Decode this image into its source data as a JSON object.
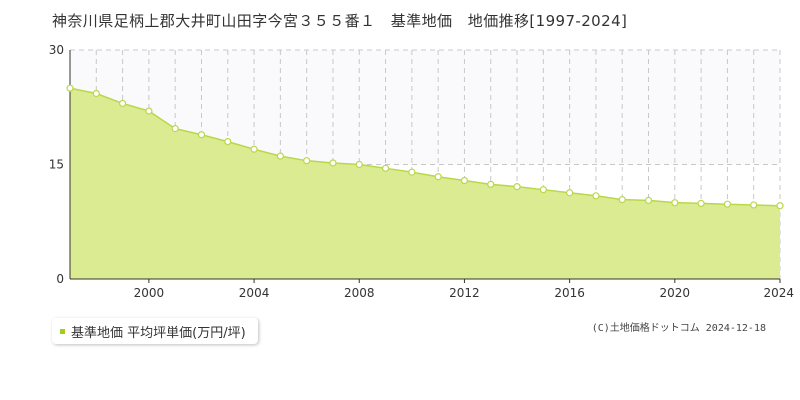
{
  "title": "神奈川県足柄上郡大井町山田字今宮３５５番１　基準地価　地価推移[1997-2024]",
  "legend": {
    "label": "基準地価 平均坪単価(万円/坪)"
  },
  "copyright": "(C)土地価格ドットコム 2024-12-18",
  "colors": {
    "fill": "#dbeb92",
    "line": "#b8d84a",
    "marker_stroke": "#b8d84a",
    "legend_marker": "#a3cc1e",
    "upper_band": "#faf9fb"
  },
  "chart_data": {
    "type": "area",
    "x": [
      1997,
      1998,
      1999,
      2000,
      2001,
      2002,
      2003,
      2004,
      2005,
      2006,
      2007,
      2008,
      2009,
      2010,
      2011,
      2012,
      2013,
      2014,
      2015,
      2016,
      2017,
      2018,
      2019,
      2020,
      2021,
      2022,
      2023,
      2024
    ],
    "series": [
      {
        "name": "基準地価 平均坪単価(万円/坪)",
        "values": [
          25.0,
          24.3,
          23.0,
          22.0,
          19.7,
          18.9,
          18.0,
          17.0,
          16.1,
          15.5,
          15.2,
          15.0,
          14.5,
          14.0,
          13.4,
          12.9,
          12.4,
          12.1,
          11.7,
          11.3,
          10.9,
          10.4,
          10.3,
          10.0,
          9.9,
          9.8,
          9.7,
          9.6
        ]
      }
    ],
    "xlim": [
      1997,
      2024
    ],
    "ylim": [
      0,
      30
    ],
    "yticks": [
      0,
      15,
      30
    ],
    "xticks": [
      2000,
      2004,
      2008,
      2012,
      2016,
      2020,
      2024
    ],
    "grid": true
  }
}
